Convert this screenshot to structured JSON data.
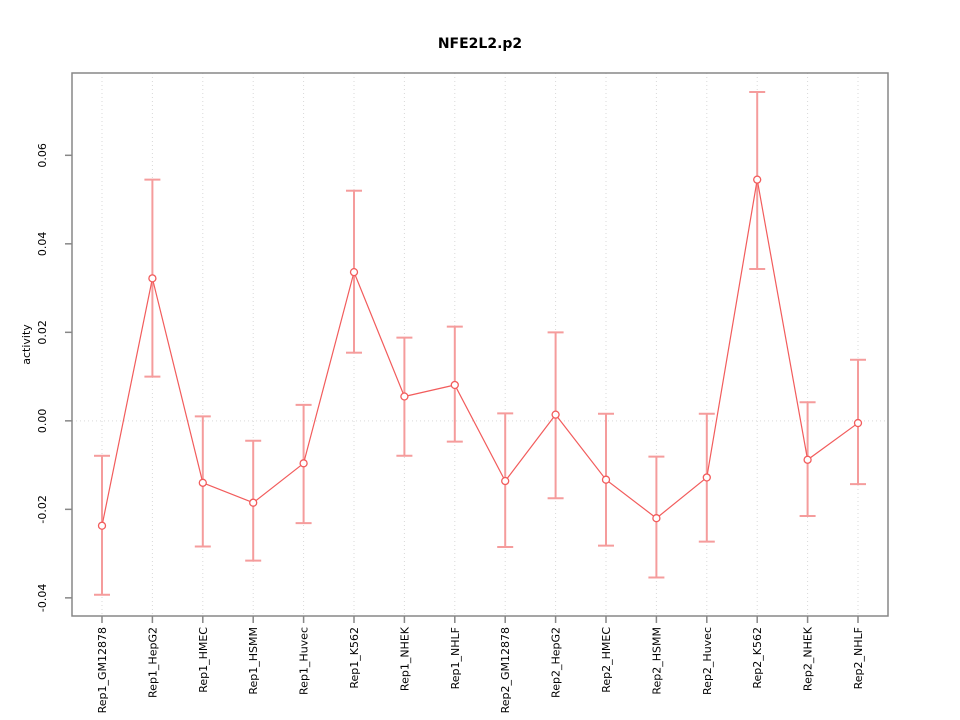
{
  "title": "NFE2L2.p2",
  "chart_data": {
    "type": "line",
    "title": "NFE2L2.p2",
    "xlabel": "",
    "ylabel": "activity",
    "legend": "none",
    "grid": "vertical dotted gridlines at each category; dotted horizontal line at y=0",
    "categories": [
      "Rep1_GM12878",
      "Rep1_HepG2",
      "Rep1_HMEC",
      "Rep1_HSMM",
      "Rep1_Huvec",
      "Rep1_K562",
      "Rep1_NHEK",
      "Rep1_NHLF",
      "Rep2_GM12878",
      "Rep2_HepG2",
      "Rep2_HMEC",
      "Rep2_HSMM",
      "Rep2_Huvec",
      "Rep2_K562",
      "Rep2_NHEK",
      "Rep2_NHLF"
    ],
    "series": [
      {
        "name": "activity",
        "values": [
          -0.0237,
          0.0322,
          -0.014,
          -0.0185,
          -0.0096,
          0.0336,
          0.0055,
          0.0081,
          -0.0136,
          0.0014,
          -0.0133,
          -0.022,
          -0.0128,
          0.0545,
          -0.0088,
          -0.0005
        ],
        "upper": [
          -0.0079,
          0.0545,
          0.001,
          -0.0045,
          0.0036,
          0.052,
          0.0188,
          0.0213,
          0.0017,
          0.02,
          0.0016,
          -0.0081,
          0.0016,
          0.0743,
          0.0042,
          0.0138
        ],
        "lower": [
          -0.0393,
          0.01,
          -0.0284,
          -0.0316,
          -0.0231,
          0.0154,
          -0.0079,
          -0.0047,
          -0.0285,
          -0.0175,
          -0.0282,
          -0.0354,
          -0.0273,
          0.0343,
          -0.0215,
          -0.0143
        ]
      }
    ],
    "yticks": [
      -0.04,
      -0.02,
      0.0,
      0.02,
      0.04,
      0.06
    ],
    "ylim": [
      -0.0441,
      0.0786
    ],
    "colors": {
      "line": "#f25c5c",
      "marker": "#f25c5c",
      "error_bar": "#f59c9c",
      "grid": "#d9d9d9",
      "frame": "#878787",
      "text": "#000000"
    }
  }
}
